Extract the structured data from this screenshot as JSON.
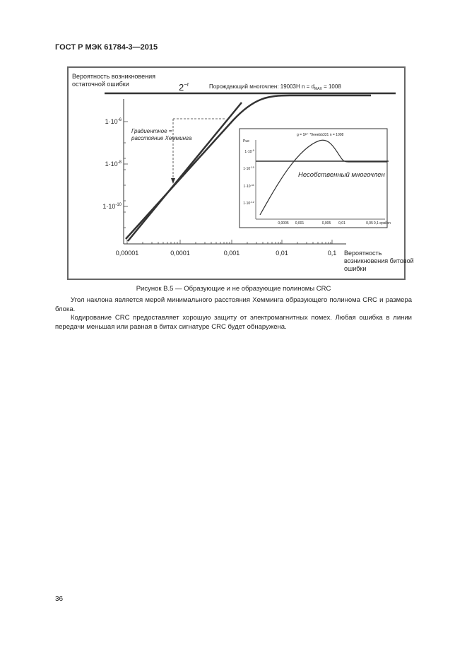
{
  "header": {
    "title": "ГОСТ Р МЭК 61784-3—2015"
  },
  "figure": {
    "y_axis_label": [
      "Вероятность возникновения",
      "остаточной ошибки"
    ],
    "limit_label": {
      "base": "2",
      "exponent": "−r"
    },
    "generator": {
      "text": "Порождающий многочлен: 19003Н n = d",
      "subscript": "MAX",
      "value": " = 1008"
    },
    "yticks": [
      {
        "mantissa": "1·10",
        "exponent": "-6"
      },
      {
        "mantissa": "1·10",
        "exponent": "-8"
      },
      {
        "mantissa": "1·10",
        "exponent": "-10"
      }
    ],
    "xticks": [
      "0,00001",
      "0,0001",
      "0,001",
      "0,01",
      "0,1"
    ],
    "x_axis_label": [
      "Вероятность",
      "возникновения битовой",
      "ошибки"
    ],
    "annotation": [
      "Градиентное =",
      "расстояние Хемминга"
    ],
    "inset": {
      "title": "g = 1F⁺ *9eeebb331   n = 1008",
      "y_label": "Pue",
      "yticks": [
        {
          "mantissa": "1·10",
          "exponent": "-9"
        },
        {
          "mantissa": "1·10",
          "exponent": "-10"
        },
        {
          "mantissa": "1·10",
          "exponent": "-11"
        },
        {
          "mantissa": "1·10",
          "exponent": "-12"
        }
      ],
      "xticks": [
        "0,0005",
        "0,001",
        "0,005",
        "0,01",
        "0,05",
        "0,1 epsilon"
      ],
      "label": "Несобственный многочлен"
    }
  },
  "caption": "Рисунок В.5 — Образующие и не образующие полиномы CRC",
  "paragraphs": [
    "Угол наклона является мерой минимального расстояния Хемминга образующего полинома CRC и размера блока.",
    "Кодирование CRC предоставляет хорошую защиту от электромагнитных помех. Любая ошибка в линии передачи меньшая или равная в битах сигнатуре CRC будет обнаружена."
  ],
  "page_number": "36"
}
